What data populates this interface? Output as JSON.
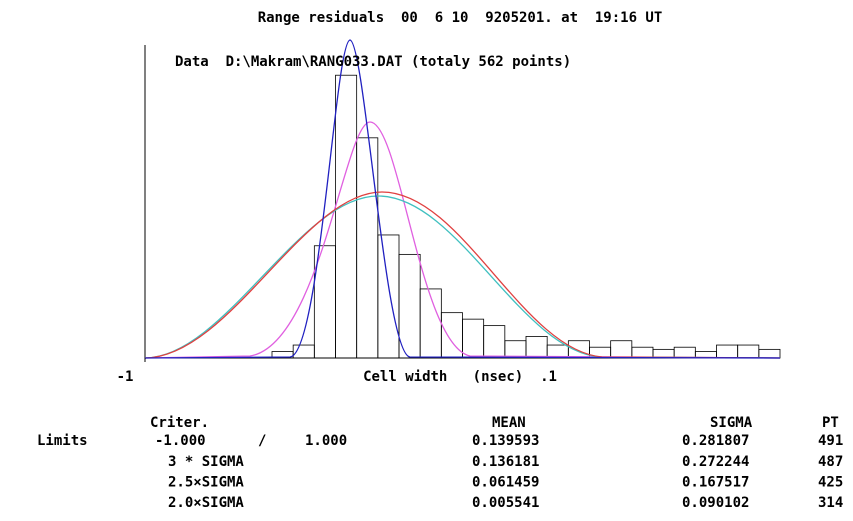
{
  "chart_data": {
    "type": "histogram",
    "title": "Range residuals  00  6 10  9205201. at  19:16 UT",
    "subtitle": "Data  D:\\Makram\\RANG033.DAT (totaly 562 points)",
    "xlabel": "Cell width   (nsec)  .1",
    "bins": [
      -0.4,
      -0.3,
      -0.2,
      -0.1,
      0.0,
      0.1,
      0.2,
      0.3,
      0.4,
      0.5,
      0.6,
      0.7,
      0.8,
      0.9,
      1.0,
      1.1,
      1.2,
      1.3,
      1.4,
      1.5,
      1.6,
      1.7,
      1.8,
      1.9,
      2.0
    ],
    "counts": [
      3,
      6,
      52,
      131,
      102,
      57,
      48,
      32,
      21,
      18,
      15,
      8,
      10,
      6,
      8,
      5,
      8,
      5,
      4,
      5,
      3,
      6,
      6,
      4
    ],
    "color": "#000000",
    "xlim": [
      -1,
      2
    ],
    "xticks": [
      -1
    ],
    "ylim": [
      0,
      145
    ]
  },
  "table": {
    "header": {
      "criterion": "Criter.",
      "mean": "MEAN",
      "sigma": "SIGMA",
      "pt": "PT"
    },
    "first_row": {
      "label": "Limits",
      "from": "-1.000",
      "sep": "/",
      "to": "1.000",
      "mean": "0.139593",
      "sigma": "0.281807",
      "pt": "491"
    },
    "rows": [
      {
        "criterion": "3 * SIGMA",
        "mean": "0.136181",
        "sigma": "0.272244",
        "pt": "487"
      },
      {
        "criterion": "2.5×SIGMA",
        "mean": "0.061459",
        "sigma": "0.167517",
        "pt": "425"
      },
      {
        "criterion": "2.0×SIGMA",
        "mean": "0.005541",
        "sigma": "0.090102",
        "pt": "314"
      }
    ]
  }
}
